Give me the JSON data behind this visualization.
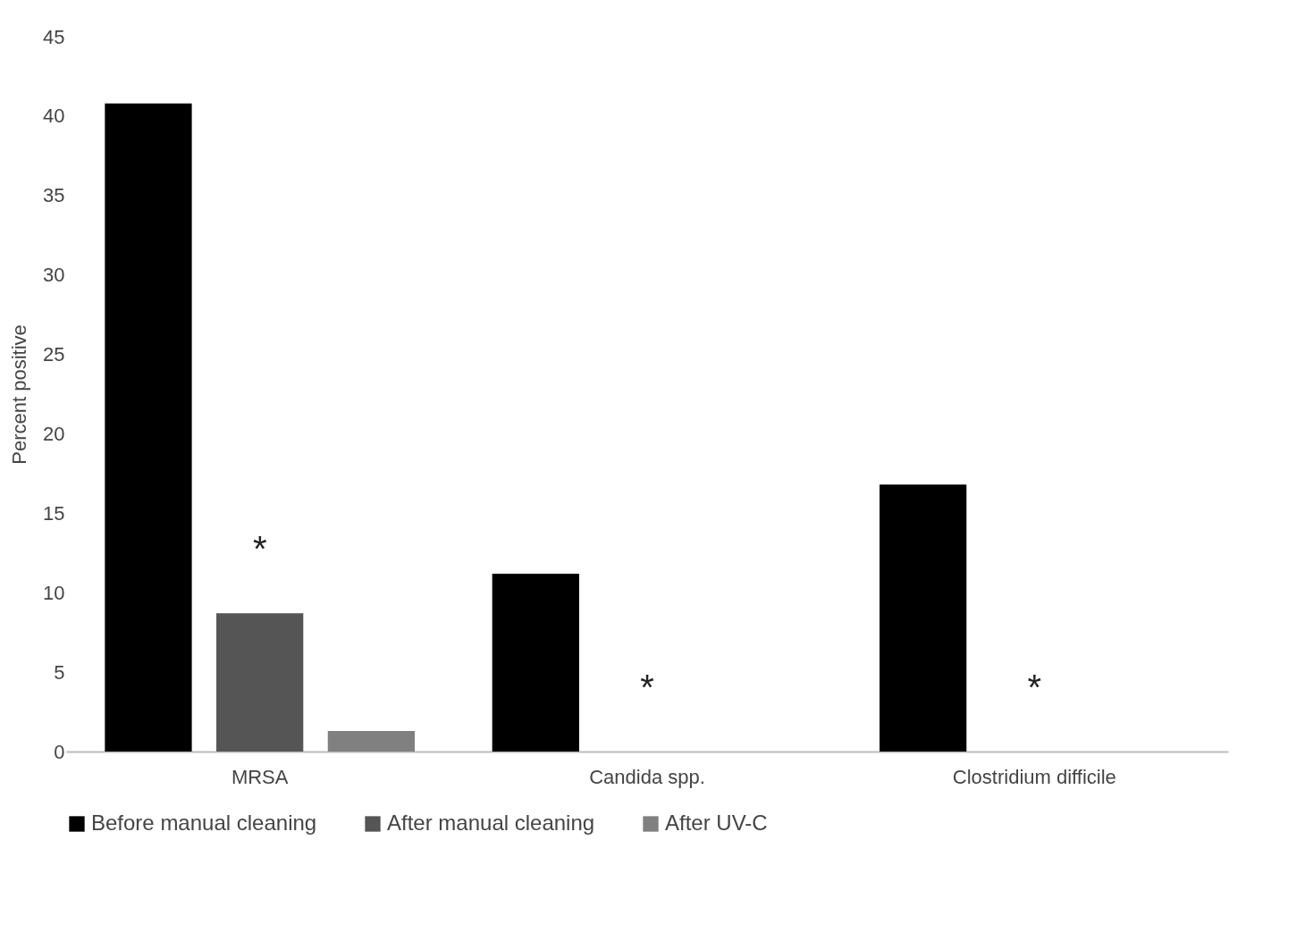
{
  "chart_data": {
    "type": "bar",
    "ylabel": "Percent positive",
    "categories": [
      "MRSA",
      "Candida spp.",
      "Clostridium difficile"
    ],
    "series": [
      {
        "name": "Before manual cleaning",
        "color": "#000000",
        "values": [
          40.8,
          11.2,
          16.8
        ]
      },
      {
        "name": "After manual cleaning",
        "color": "#555555",
        "values": [
          8.7,
          0,
          0
        ]
      },
      {
        "name": "After UV-C",
        "color": "#808080",
        "values": [
          1.3,
          0,
          0
        ]
      }
    ],
    "ylim": [
      0,
      45
    ],
    "yticks": [
      0,
      5,
      10,
      15,
      20,
      25,
      30,
      35,
      40,
      45
    ],
    "grid": false,
    "legend": "bottom",
    "annotations": [
      "*",
      "*",
      "*"
    ]
  }
}
